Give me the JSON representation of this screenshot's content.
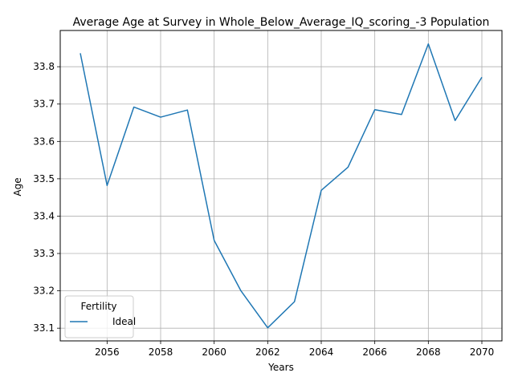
{
  "chart_data": {
    "type": "line",
    "title": "Average Age at Survey in Whole_Below_Average_IQ_scoring_-3 Population",
    "xlabel": "Years",
    "ylabel": "Age",
    "xlim": [
      2054.25,
      2070.75
    ],
    "ylim": [
      33.066,
      33.897
    ],
    "xticks": [
      2056,
      2058,
      2060,
      2062,
      2064,
      2066,
      2068,
      2070
    ],
    "yticks": [
      33.1,
      33.2,
      33.3,
      33.4,
      33.5,
      33.6,
      33.7,
      33.8
    ],
    "grid": true,
    "legend": {
      "title": "Fertility",
      "position": "lower-left"
    },
    "series": [
      {
        "name": "Ideal",
        "color": "#1f77b4",
        "x": [
          2055,
          2056,
          2057,
          2058,
          2059,
          2060,
          2061,
          2062,
          2063,
          2064,
          2065,
          2066,
          2067,
          2068,
          2069,
          2070
        ],
        "y": [
          33.836,
          33.482,
          33.692,
          33.665,
          33.684,
          33.335,
          33.2,
          33.101,
          33.171,
          33.469,
          33.531,
          33.685,
          33.672,
          33.861,
          33.656,
          33.772
        ]
      }
    ]
  }
}
